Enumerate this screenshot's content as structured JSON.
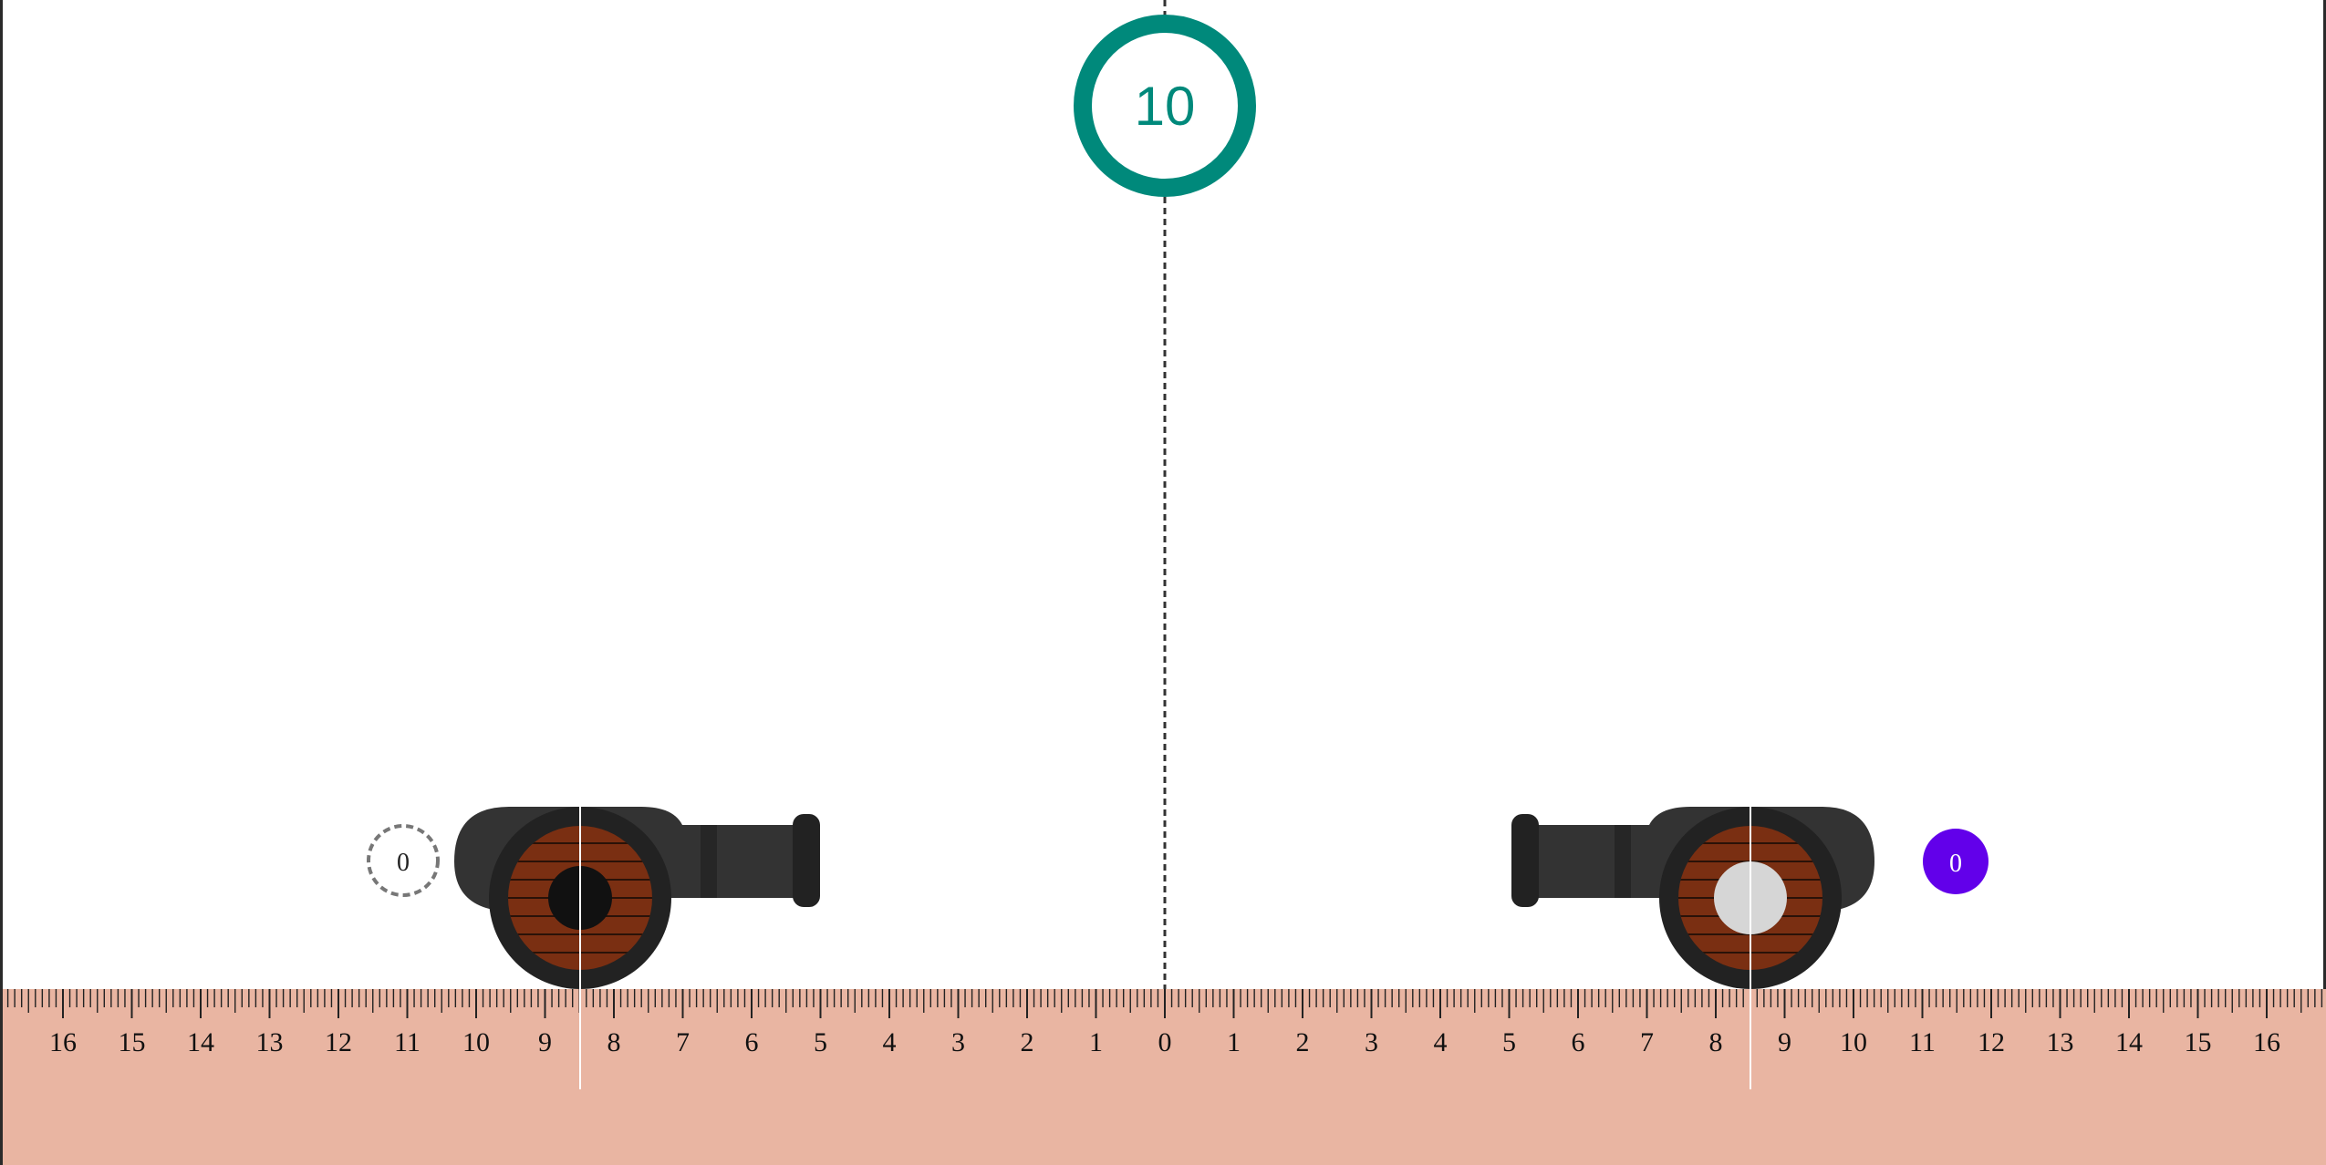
{
  "timer": {
    "value": "10",
    "color": "#00897b"
  },
  "ruler": {
    "left_labels": [
      "16",
      "15",
      "14",
      "13",
      "12",
      "11",
      "10",
      "9",
      "8",
      "7",
      "6",
      "5",
      "4",
      "3",
      "2",
      "1"
    ],
    "center_label": "0",
    "right_labels": [
      "1",
      "2",
      "3",
      "4",
      "5",
      "6",
      "7",
      "8",
      "9",
      "10",
      "11",
      "12",
      "13",
      "14",
      "15",
      "16"
    ],
    "color": "#e9b5a2",
    "tick_color": "#222222"
  },
  "left_player": {
    "score": "0",
    "marker_style": "dashed-outline",
    "cannonball_color": "#111111",
    "position": 8.5
  },
  "right_player": {
    "score": "0",
    "badge_color": "#6200ea",
    "cannonball_color": "#d6d6d6",
    "position": 8.5
  },
  "cannon": {
    "body_color": "#333333",
    "wheel_rim_color": "#222222",
    "wheel_wood_color": "#7a2f12"
  }
}
